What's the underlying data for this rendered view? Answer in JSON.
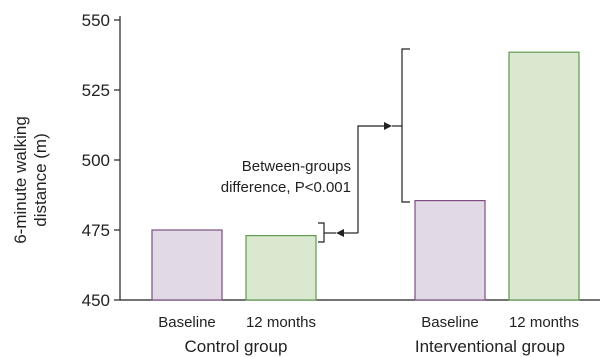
{
  "chart_data": {
    "type": "bar",
    "title": "",
    "ylabel_line1": "6-minute walking",
    "ylabel_line2": "distance (m)",
    "ylim": [
      450,
      550
    ],
    "yticks": [
      450,
      475,
      500,
      525,
      550
    ],
    "groups": [
      {
        "name": "Control group",
        "bars": [
          {
            "label": "Baseline",
            "value": 475,
            "color": "#e2d9e6",
            "stroke": "#7b4f82"
          },
          {
            "label": "12 months",
            "value": 473,
            "color": "#d9e8cf",
            "stroke": "#5f9a4f"
          }
        ]
      },
      {
        "name": "Interventional group",
        "bars": [
          {
            "label": "Baseline",
            "value": 485.5,
            "color": "#e2d9e6",
            "stroke": "#7b4f82"
          },
          {
            "label": "12 months",
            "value": 538.5,
            "color": "#d9e8cf",
            "stroke": "#5f9a4f"
          }
        ]
      }
    ],
    "annotation": {
      "line1": "Between-groups",
      "line2": "difference, P<0.001"
    },
    "grid": false,
    "legend": "none"
  }
}
